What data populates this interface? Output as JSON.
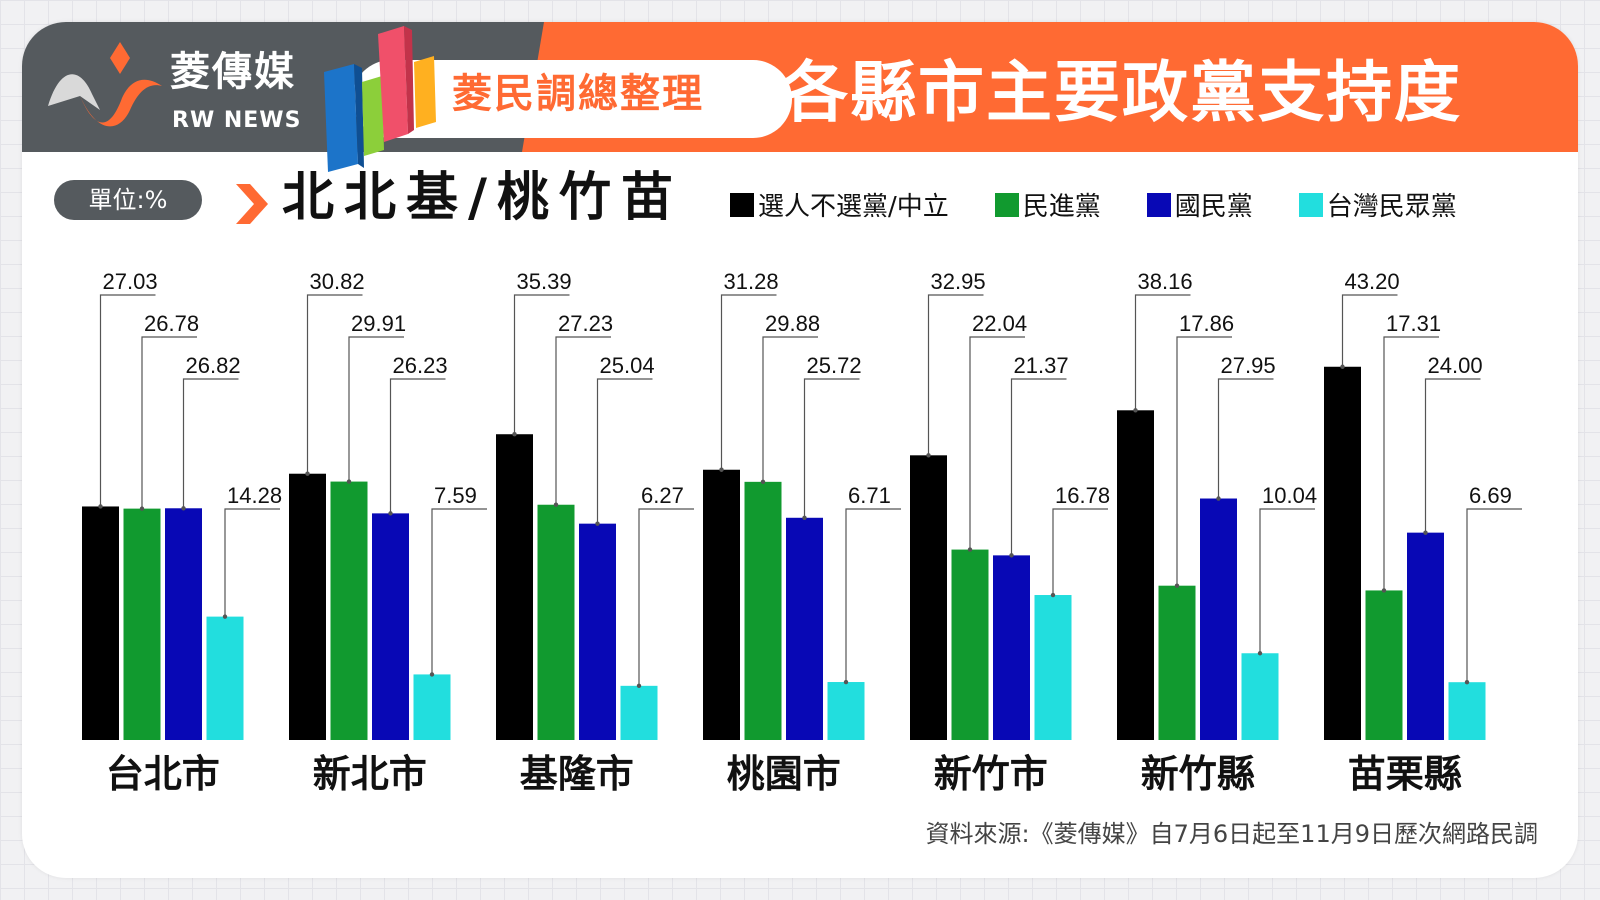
{
  "brand": {
    "name_cn": "菱傳媒",
    "name_en": "RW NEWS"
  },
  "header": {
    "pill": "菱民調總整理",
    "title": "各縣市主要政黨支持度"
  },
  "unit_label": "單位:%",
  "subtitle": "北北基/桃竹苗",
  "source": "資料來源:《菱傳媒》自7月6日起至11月9日歷次網路民調",
  "colors": {
    "header_gray": "#555a5e",
    "header_orange": "#ff6a33"
  },
  "chart_data": {
    "type": "bar",
    "categories": [
      "台北市",
      "新北市",
      "基隆市",
      "桃園市",
      "新竹市",
      "新竹縣",
      "苗栗縣"
    ],
    "series": [
      {
        "name": "選人不選黨/中立",
        "color": "#000000",
        "values": [
          27.03,
          30.82,
          35.39,
          31.28,
          32.95,
          38.16,
          43.2
        ]
      },
      {
        "name": "民進黨",
        "color": "#119a2f",
        "values": [
          26.78,
          29.91,
          27.23,
          29.88,
          22.04,
          17.86,
          17.31
        ]
      },
      {
        "name": "國民黨",
        "color": "#0808b5",
        "values": [
          26.82,
          26.23,
          25.04,
          25.72,
          21.37,
          27.95,
          24.0
        ]
      },
      {
        "name": "台灣民眾黨",
        "color": "#22dede",
        "values": [
          14.28,
          7.59,
          6.27,
          6.71,
          16.78,
          10.04,
          6.69
        ]
      }
    ],
    "value_labels": [
      [
        "27.03",
        "30.82",
        "35.39",
        "31.28",
        "32.95",
        "38.16",
        "43.20"
      ],
      [
        "26.78",
        "29.91",
        "27.23",
        "29.88",
        "22.04",
        "17.86",
        "17.31"
      ],
      [
        "26.82",
        "26.23",
        "25.04",
        "25.72",
        "21.37",
        "27.95",
        "24.00"
      ],
      [
        "14.28",
        "7.59",
        "6.27",
        "6.71",
        "16.78",
        "10.04",
        "6.69"
      ]
    ],
    "ylim": [
      0,
      50
    ],
    "grid": false,
    "legend_position": "top-right"
  }
}
